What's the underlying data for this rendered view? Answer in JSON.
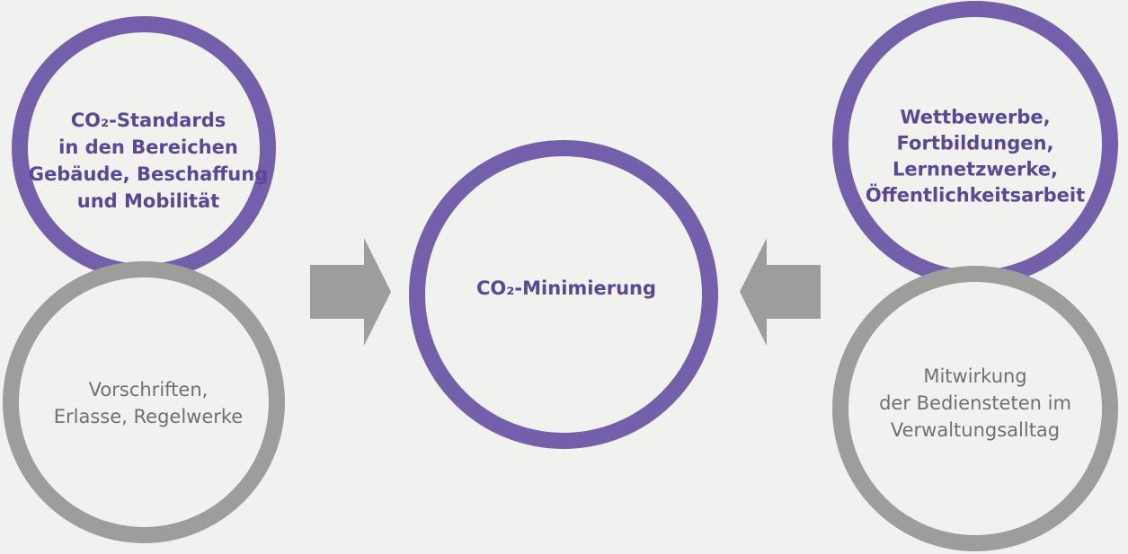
{
  "nodes": [
    {
      "lines": [
        "CO₂-Standards",
        "in den Bereichen",
        "Gebäude, Beschaffung",
        "und Mobilität"
      ]
    },
    {
      "lines": [
        "Vorschriften,",
        "Erlasse, Regelwerke"
      ]
    },
    {
      "lines": [
        "CO₂-Minimierung"
      ]
    },
    {
      "lines": [
        "Wettbewerbe,",
        "Fortbildungen,",
        "Lernnetzwerke,",
        "Öffentlichkeitsarbeit"
      ]
    },
    {
      "lines": [
        "Mitwirkung",
        "der Bediensteten im",
        "Verwaltungsalltag"
      ]
    }
  ]
}
